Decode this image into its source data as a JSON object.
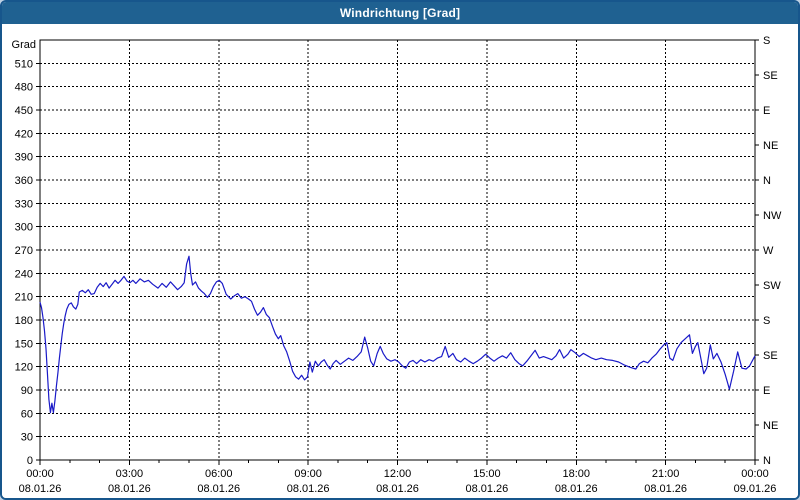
{
  "window": {
    "title": "Windrichtung [Grad]"
  },
  "colors": {
    "titlebar": "#1f6191",
    "window_border": "#17568c",
    "page_background": "#bfd1e3",
    "plot_background": "#ffffff",
    "grid": "#000000",
    "axis_text": "#000000",
    "series_line": "#1a1ac8"
  },
  "chart_data": {
    "type": "line",
    "title": "Windrichtung [Grad]",
    "xlabel": "",
    "ylabel": "Grad",
    "grid": {
      "style": "dashed",
      "horizontal_step_deg": 30,
      "vertical_step_hours": 3
    },
    "legend": null,
    "x_axis": {
      "range_hours": [
        0,
        24
      ],
      "major_step_hours": 3,
      "minor_step_hours": 1,
      "ticks": [
        {
          "time": "00:00",
          "date": "08.01.26"
        },
        {
          "time": "03:00",
          "date": "08.01.26"
        },
        {
          "time": "06:00",
          "date": "08.01.26"
        },
        {
          "time": "09:00",
          "date": "08.01.26"
        },
        {
          "time": "12:00",
          "date": "08.01.26"
        },
        {
          "time": "15:00",
          "date": "08.01.26"
        },
        {
          "time": "18:00",
          "date": "08.01.26"
        },
        {
          "time": "21:00",
          "date": "08.01.26"
        },
        {
          "time": "00:00",
          "date": "09.01.26"
        }
      ]
    },
    "y_axis_left": {
      "title": "Grad",
      "min": 0,
      "max": 540,
      "tick_step": 30,
      "tick_labels": [
        "0",
        "30",
        "60",
        "90",
        "120",
        "150",
        "180",
        "210",
        "240",
        "270",
        "300",
        "330",
        "360",
        "390",
        "420",
        "450",
        "480",
        "510"
      ]
    },
    "y_axis_right": {
      "tick_step_deg": 45,
      "labels_bottom_to_top": [
        "N",
        "NE",
        "E",
        "SE",
        "S",
        "SW",
        "W",
        "NW",
        "N",
        "NE",
        "E",
        "SE",
        "S"
      ]
    },
    "series": [
      {
        "name": "Windrichtung",
        "color": "#1a1ac8",
        "points": [
          [
            0.0,
            203
          ],
          [
            0.05,
            196
          ],
          [
            0.1,
            183
          ],
          [
            0.15,
            166
          ],
          [
            0.2,
            143
          ],
          [
            0.25,
            112
          ],
          [
            0.3,
            78
          ],
          [
            0.35,
            61
          ],
          [
            0.4,
            73
          ],
          [
            0.45,
            61
          ],
          [
            0.5,
            76
          ],
          [
            0.55,
            95
          ],
          [
            0.6,
            112
          ],
          [
            0.65,
            131
          ],
          [
            0.7,
            148
          ],
          [
            0.75,
            163
          ],
          [
            0.8,
            176
          ],
          [
            0.85,
            186
          ],
          [
            0.9,
            194
          ],
          [
            0.97,
            200
          ],
          [
            1.05,
            202
          ],
          [
            1.12,
            197
          ],
          [
            1.2,
            194
          ],
          [
            1.27,
            200
          ],
          [
            1.32,
            216
          ],
          [
            1.42,
            218
          ],
          [
            1.52,
            215
          ],
          [
            1.62,
            219
          ],
          [
            1.72,
            213
          ],
          [
            1.82,
            214
          ],
          [
            1.92,
            222
          ],
          [
            2.02,
            227
          ],
          [
            2.12,
            223
          ],
          [
            2.22,
            228
          ],
          [
            2.32,
            221
          ],
          [
            2.42,
            226
          ],
          [
            2.52,
            231
          ],
          [
            2.62,
            227
          ],
          [
            2.72,
            231
          ],
          [
            2.82,
            236
          ],
          [
            2.92,
            230
          ],
          [
            3.02,
            228
          ],
          [
            3.12,
            231
          ],
          [
            3.22,
            227
          ],
          [
            3.36,
            233
          ],
          [
            3.5,
            229
          ],
          [
            3.64,
            231
          ],
          [
            3.78,
            226
          ],
          [
            3.96,
            221
          ],
          [
            4.1,
            227
          ],
          [
            4.24,
            222
          ],
          [
            4.38,
            229
          ],
          [
            4.5,
            224
          ],
          [
            4.62,
            219
          ],
          [
            4.74,
            223
          ],
          [
            4.84,
            228
          ],
          [
            4.92,
            252
          ],
          [
            5.0,
            262
          ],
          [
            5.06,
            240
          ],
          [
            5.12,
            225
          ],
          [
            5.22,
            229
          ],
          [
            5.32,
            221
          ],
          [
            5.42,
            217
          ],
          [
            5.52,
            214
          ],
          [
            5.62,
            209
          ],
          [
            5.72,
            214
          ],
          [
            5.82,
            223
          ],
          [
            5.92,
            229
          ],
          [
            6.02,
            231
          ],
          [
            6.12,
            227
          ],
          [
            6.25,
            213
          ],
          [
            6.4,
            207
          ],
          [
            6.52,
            211
          ],
          [
            6.64,
            214
          ],
          [
            6.76,
            208
          ],
          [
            6.88,
            210
          ],
          [
            7.0,
            207
          ],
          [
            7.1,
            204
          ],
          [
            7.2,
            194
          ],
          [
            7.3,
            186
          ],
          [
            7.4,
            190
          ],
          [
            7.5,
            196
          ],
          [
            7.6,
            187
          ],
          [
            7.7,
            183
          ],
          [
            7.8,
            172
          ],
          [
            7.9,
            162
          ],
          [
            8.0,
            156
          ],
          [
            8.08,
            160
          ],
          [
            8.18,
            147
          ],
          [
            8.28,
            139
          ],
          [
            8.38,
            127
          ],
          [
            8.48,
            114
          ],
          [
            8.58,
            107
          ],
          [
            8.68,
            104
          ],
          [
            8.78,
            109
          ],
          [
            8.88,
            103
          ],
          [
            8.98,
            107
          ],
          [
            9.06,
            126
          ],
          [
            9.14,
            113
          ],
          [
            9.24,
            127
          ],
          [
            9.34,
            121
          ],
          [
            9.44,
            126
          ],
          [
            9.54,
            129
          ],
          [
            9.64,
            122
          ],
          [
            9.74,
            117
          ],
          [
            9.84,
            124
          ],
          [
            9.94,
            128
          ],
          [
            10.08,
            123
          ],
          [
            10.22,
            127
          ],
          [
            10.36,
            131
          ],
          [
            10.5,
            128
          ],
          [
            10.64,
            133
          ],
          [
            10.78,
            139
          ],
          [
            10.9,
            158
          ],
          [
            11.0,
            144
          ],
          [
            11.1,
            127
          ],
          [
            11.2,
            121
          ],
          [
            11.32,
            137
          ],
          [
            11.42,
            146
          ],
          [
            11.52,
            137
          ],
          [
            11.64,
            130
          ],
          [
            11.78,
            127
          ],
          [
            11.92,
            129
          ],
          [
            12.04,
            126
          ],
          [
            12.16,
            121
          ],
          [
            12.28,
            118
          ],
          [
            12.4,
            126
          ],
          [
            12.52,
            128
          ],
          [
            12.64,
            124
          ],
          [
            12.78,
            129
          ],
          [
            12.92,
            126
          ],
          [
            13.06,
            129
          ],
          [
            13.2,
            127
          ],
          [
            13.34,
            131
          ],
          [
            13.48,
            133
          ],
          [
            13.6,
            146
          ],
          [
            13.72,
            132
          ],
          [
            13.86,
            137
          ],
          [
            13.98,
            129
          ],
          [
            14.12,
            126
          ],
          [
            14.26,
            131
          ],
          [
            14.4,
            127
          ],
          [
            14.54,
            124
          ],
          [
            14.68,
            127
          ],
          [
            14.82,
            131
          ],
          [
            14.96,
            136
          ],
          [
            15.1,
            131
          ],
          [
            15.24,
            127
          ],
          [
            15.38,
            131
          ],
          [
            15.52,
            134
          ],
          [
            15.66,
            131
          ],
          [
            15.8,
            138
          ],
          [
            15.94,
            129
          ],
          [
            16.08,
            124
          ],
          [
            16.2,
            121
          ],
          [
            16.34,
            127
          ],
          [
            16.48,
            134
          ],
          [
            16.62,
            141
          ],
          [
            16.76,
            131
          ],
          [
            16.9,
            133
          ],
          [
            17.04,
            131
          ],
          [
            17.18,
            129
          ],
          [
            17.32,
            134
          ],
          [
            17.44,
            142
          ],
          [
            17.58,
            131
          ],
          [
            17.72,
            136
          ],
          [
            17.82,
            142
          ],
          [
            17.96,
            138
          ],
          [
            18.1,
            133
          ],
          [
            18.24,
            137
          ],
          [
            18.38,
            134
          ],
          [
            18.52,
            131
          ],
          [
            18.66,
            129
          ],
          [
            18.84,
            131
          ],
          [
            19.02,
            129
          ],
          [
            19.22,
            128
          ],
          [
            19.42,
            126
          ],
          [
            19.62,
            122
          ],
          [
            19.82,
            119
          ],
          [
            20.0,
            117
          ],
          [
            20.12,
            124
          ],
          [
            20.26,
            127
          ],
          [
            20.4,
            125
          ],
          [
            20.54,
            131
          ],
          [
            20.68,
            136
          ],
          [
            20.82,
            143
          ],
          [
            20.94,
            148
          ],
          [
            21.04,
            151
          ],
          [
            21.14,
            131
          ],
          [
            21.24,
            128
          ],
          [
            21.38,
            143
          ],
          [
            21.52,
            151
          ],
          [
            21.66,
            156
          ],
          [
            21.8,
            161
          ],
          [
            21.9,
            137
          ],
          [
            22.0,
            146
          ],
          [
            22.08,
            151
          ],
          [
            22.18,
            131
          ],
          [
            22.28,
            111
          ],
          [
            22.38,
            118
          ],
          [
            22.5,
            148
          ],
          [
            22.6,
            130
          ],
          [
            22.72,
            137
          ],
          [
            22.86,
            126
          ],
          [
            23.0,
            110
          ],
          [
            23.14,
            91
          ],
          [
            23.28,
            114
          ],
          [
            23.42,
            139
          ],
          [
            23.56,
            118
          ],
          [
            23.7,
            117
          ],
          [
            23.82,
            121
          ],
          [
            24.0,
            134
          ]
        ]
      }
    ]
  }
}
